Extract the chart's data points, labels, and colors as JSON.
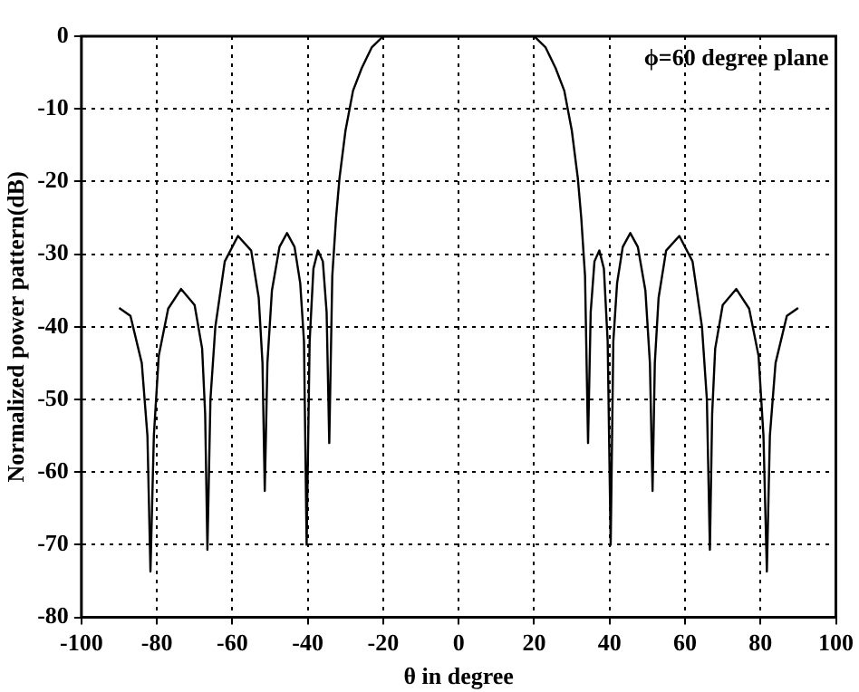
{
  "chart_data": {
    "type": "line",
    "xlabel": "θ in degree",
    "ylabel": "Normalized power pattern(dB)",
    "annotations": [
      "ϕ=60 degree plane"
    ],
    "xlim": [
      -100,
      100
    ],
    "xticks": [
      -100,
      -80,
      -60,
      -40,
      -20,
      0,
      20,
      40,
      60,
      80,
      100
    ],
    "ylim": [
      -80,
      0
    ],
    "yticks": [
      -80,
      -70,
      -60,
      -50,
      -40,
      -30,
      -20,
      -10,
      0
    ],
    "grid": true,
    "marker": "none",
    "line_style": "solid",
    "series": [
      {
        "color": "#000000",
        "x": [
          -90,
          -87,
          -84,
          -82.5,
          -81.7,
          -80.8,
          -79.5,
          -77,
          -73.6,
          -70,
          -68,
          -67.2,
          -66.6,
          -65.8,
          -64.5,
          -62,
          -58.5,
          -55,
          -53,
          -52,
          -51.4,
          -50.7,
          -49.5,
          -47.5,
          -45.5,
          -43.5,
          -42,
          -41,
          -40.3,
          -39.5,
          -38.5,
          -37.3,
          -36,
          -35,
          -34.3,
          -33.5,
          -32.5,
          -31.6,
          -30,
          -28,
          -25.7,
          -23,
          -20,
          20,
          23,
          25.7,
          28,
          30,
          31.6,
          32.5,
          33.5,
          34.3,
          35,
          36,
          37.3,
          38.5,
          39.5,
          40.3,
          41,
          42,
          43.5,
          45.5,
          47.5,
          49.5,
          50.7,
          51.4,
          52,
          53,
          55,
          58.5,
          62,
          64.5,
          65.8,
          66.6,
          67.2,
          68,
          70,
          73.6,
          77,
          79.5,
          80.8,
          81.7,
          82.5,
          84,
          87,
          90
        ],
        "values": [
          -37.4,
          -38.5,
          -45,
          -55,
          -73.7,
          -55,
          -44,
          -37.5,
          -34.8,
          -37,
          -43,
          -52,
          -70.7,
          -50,
          -40,
          -31,
          -27.5,
          -29.5,
          -36,
          -45,
          -62.6,
          -45,
          -35,
          -29,
          -27.1,
          -29,
          -34,
          -42,
          -70,
          -42,
          -32,
          -29.5,
          -31,
          -38,
          -56,
          -33,
          -25,
          -19.6,
          -13,
          -7.5,
          -4.4,
          -1.5,
          0,
          0,
          -1.5,
          -4.4,
          -7.5,
          -13,
          -19.6,
          -25,
          -33,
          -56,
          -38,
          -31,
          -29.5,
          -32,
          -42,
          -70,
          -42,
          -34,
          -29,
          -27.1,
          -29,
          -35,
          -45,
          -62.6,
          -45,
          -36,
          -29.5,
          -27.5,
          -31,
          -40,
          -50,
          -70.7,
          -52,
          -43,
          -37,
          -34.8,
          -37.5,
          -44,
          -55,
          -73.7,
          -55,
          -45,
          -38.5,
          -37.4
        ]
      }
    ]
  }
}
